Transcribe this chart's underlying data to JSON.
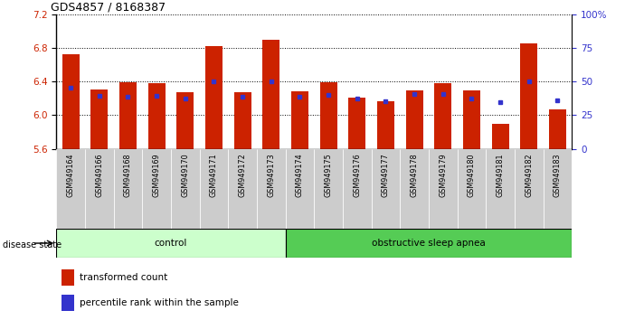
{
  "title": "GDS4857 / 8168387",
  "samples": [
    "GSM949164",
    "GSM949166",
    "GSM949168",
    "GSM949169",
    "GSM949170",
    "GSM949171",
    "GSM949172",
    "GSM949173",
    "GSM949174",
    "GSM949175",
    "GSM949176",
    "GSM949177",
    "GSM949178",
    "GSM949179",
    "GSM949180",
    "GSM949181",
    "GSM949182",
    "GSM949183"
  ],
  "bar_values": [
    6.73,
    6.31,
    6.39,
    6.38,
    6.27,
    6.82,
    6.27,
    6.9,
    6.28,
    6.39,
    6.21,
    6.17,
    6.3,
    6.38,
    6.3,
    5.9,
    6.85,
    6.07
  ],
  "blue_values": [
    6.33,
    6.23,
    6.22,
    6.23,
    6.2,
    6.4,
    6.22,
    6.4,
    6.22,
    6.24,
    6.2,
    6.17,
    6.25,
    6.25,
    6.2,
    6.16,
    6.4,
    6.18
  ],
  "bar_color": "#cc2200",
  "blue_color": "#3333cc",
  "ymin": 5.6,
  "ymax": 7.2,
  "yticks_left": [
    5.6,
    6.0,
    6.4,
    6.8,
    7.2
  ],
  "yticks_right_labels": [
    "0",
    "25",
    "50",
    "75",
    "100%"
  ],
  "control_count": 8,
  "control_label": "control",
  "disease_label": "obstructive sleep apnea",
  "disease_state_label": "disease state",
  "legend_bar_label": "transformed count",
  "legend_blue_label": "percentile rank within the sample",
  "control_color": "#ccffcc",
  "disease_color": "#55cc55",
  "tick_bg_color": "#cccccc"
}
